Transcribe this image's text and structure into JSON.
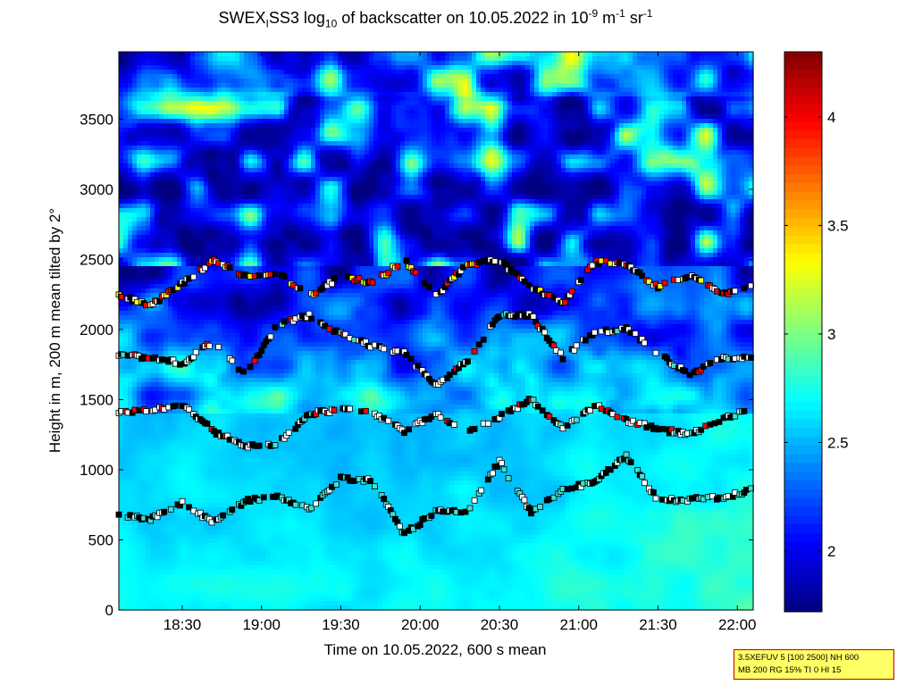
{
  "chart_data": {
    "type": "heatmap",
    "title_parts": [
      "SWEX",
      "I",
      "SS3 log",
      "10",
      " of backscatter on 10.05.2022 in 10",
      "-9",
      " m",
      "-1",
      " sr",
      "-1"
    ],
    "xlabel": "Time on 10.05.2022, 600 s mean",
    "ylabel": "Height in m, 200 m mean tilted by 2°",
    "x_ticks": [
      "18:30",
      "19:00",
      "19:30",
      "20:00",
      "20:30",
      "21:00",
      "21:30",
      "22:00"
    ],
    "x_tick_hours": [
      18.5,
      19.0,
      19.5,
      20.0,
      20.5,
      21.0,
      21.5,
      22.0
    ],
    "xlim_hours": [
      18.1,
      22.1
    ],
    "y_ticks": [
      0,
      500,
      1000,
      1500,
      2000,
      2500,
      3000,
      3500
    ],
    "ylim": [
      0,
      3980
    ],
    "colorbar": {
      "ticks": [
        2,
        2.5,
        3,
        3.5,
        4
      ],
      "range": [
        1.72,
        4.3
      ],
      "colormap": "jet"
    },
    "layers": {
      "surface_layer": {
        "height_range": [
          0,
          1400
        ],
        "value_range": [
          2.4,
          2.9
        ]
      },
      "transition": {
        "height_range": [
          1400,
          2500
        ],
        "value_range": [
          1.8,
          2.6
        ]
      },
      "upper": {
        "height_range": [
          2500,
          3980
        ],
        "value_range": [
          1.7,
          3.1
        ]
      }
    },
    "marker_tracks": [
      {
        "name": "track-a",
        "points": [
          [
            18.1,
            1410
          ],
          [
            18.3,
            1420
          ],
          [
            18.5,
            1470
          ],
          [
            18.7,
            1270
          ],
          [
            18.9,
            1170
          ],
          [
            19.1,
            1180
          ],
          [
            19.3,
            1400
          ],
          [
            19.5,
            1430
          ],
          [
            19.7,
            1410
          ],
          [
            19.9,
            1270
          ],
          [
            20.1,
            1400
          ],
          [
            20.3,
            1260
          ],
          [
            20.5,
            1380
          ],
          [
            20.7,
            1500
          ],
          [
            20.9,
            1300
          ],
          [
            21.1,
            1460
          ],
          [
            21.3,
            1350
          ],
          [
            21.5,
            1290
          ],
          [
            21.7,
            1250
          ],
          [
            21.9,
            1350
          ],
          [
            22.1,
            1450
          ]
        ]
      },
      {
        "name": "track-b",
        "points": [
          [
            18.1,
            1820
          ],
          [
            18.3,
            1800
          ],
          [
            18.5,
            1760
          ],
          [
            18.7,
            1920
          ],
          [
            18.9,
            1670
          ],
          [
            19.1,
            2030
          ],
          [
            19.3,
            2100
          ],
          [
            19.5,
            1970
          ],
          [
            19.7,
            1880
          ],
          [
            19.9,
            1830
          ],
          [
            20.1,
            1600
          ],
          [
            20.3,
            1780
          ],
          [
            20.5,
            2100
          ],
          [
            20.7,
            2100
          ],
          [
            20.9,
            1800
          ],
          [
            21.1,
            1980
          ],
          [
            21.3,
            2010
          ],
          [
            21.5,
            1830
          ],
          [
            21.7,
            1680
          ],
          [
            21.9,
            1790
          ],
          [
            22.1,
            1810
          ]
        ]
      },
      {
        "name": "track-c",
        "points": [
          [
            18.1,
            2250
          ],
          [
            18.3,
            2170
          ],
          [
            18.5,
            2330
          ],
          [
            18.7,
            2490
          ],
          [
            18.9,
            2380
          ],
          [
            19.1,
            2400
          ],
          [
            19.3,
            2240
          ],
          [
            19.5,
            2380
          ],
          [
            19.7,
            2330
          ],
          [
            19.9,
            2500
          ],
          [
            20.1,
            2240
          ],
          [
            20.3,
            2470
          ],
          [
            20.5,
            2490
          ],
          [
            20.7,
            2310
          ],
          [
            20.9,
            2180
          ],
          [
            21.1,
            2480
          ],
          [
            21.3,
            2470
          ],
          [
            21.5,
            2300
          ],
          [
            21.7,
            2390
          ],
          [
            21.9,
            2250
          ],
          [
            22.1,
            2330
          ]
        ]
      },
      {
        "name": "track-d",
        "points": [
          [
            18.1,
            680
          ],
          [
            18.3,
            650
          ],
          [
            18.5,
            760
          ],
          [
            18.7,
            620
          ],
          [
            18.9,
            780
          ],
          [
            19.1,
            800
          ],
          [
            19.3,
            720
          ],
          [
            19.5,
            940
          ],
          [
            19.7,
            920
          ],
          [
            19.9,
            540
          ],
          [
            20.1,
            700
          ],
          [
            20.3,
            700
          ],
          [
            20.5,
            1060
          ],
          [
            20.7,
            690
          ],
          [
            20.9,
            860
          ],
          [
            21.1,
            910
          ],
          [
            21.3,
            1100
          ],
          [
            21.5,
            780
          ],
          [
            21.7,
            790
          ],
          [
            21.9,
            800
          ],
          [
            22.1,
            860
          ]
        ]
      }
    ],
    "marker_colors": [
      "#000000",
      "#ffffff",
      "#ff0000",
      "#ffff00",
      "#40e0d0"
    ]
  },
  "infobox": {
    "line1": "3.5XEFUV 5 [100 2500] NH 600",
    "line2": "MB 200 RG 15% TI 0 HI 15"
  }
}
